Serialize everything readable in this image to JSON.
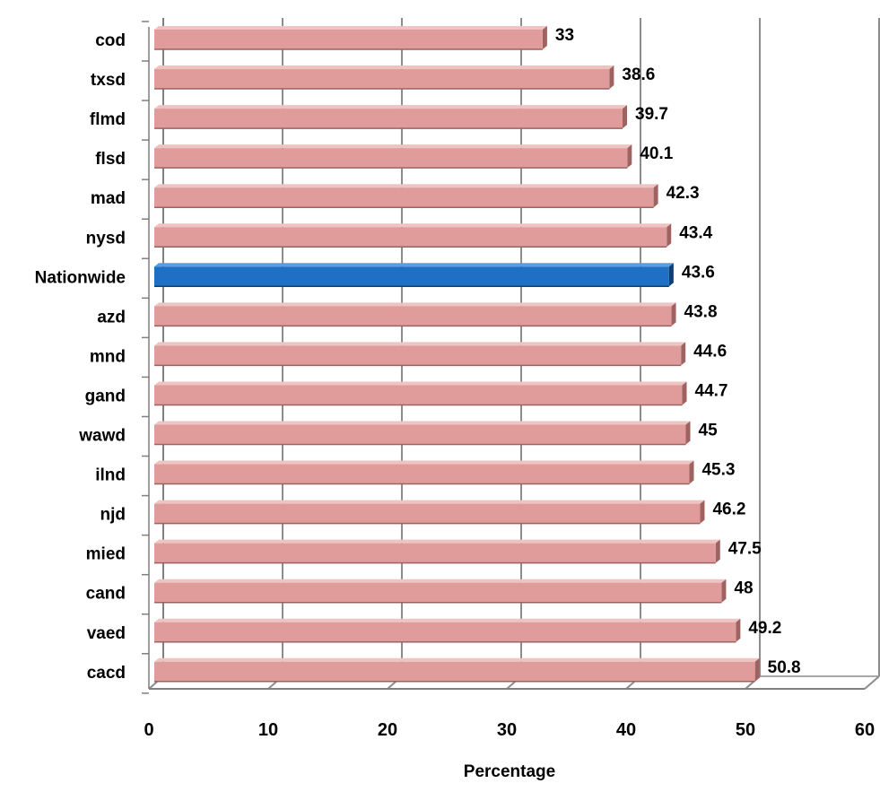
{
  "chart_data": {
    "type": "bar",
    "orientation": "horizontal",
    "three_d": true,
    "categories": [
      "cod",
      "txsd",
      "flmd",
      "flsd",
      "mad",
      "nysd",
      "Nationwide",
      "azd",
      "mnd",
      "gand",
      "wawd",
      "ilnd",
      "njd",
      "mied",
      "cand",
      "vaed",
      "cacd"
    ],
    "values": [
      33,
      38.6,
      39.7,
      40.1,
      42.3,
      43.4,
      43.6,
      43.8,
      44.6,
      44.7,
      45,
      45.3,
      46.2,
      47.5,
      48,
      49.2,
      50.8
    ],
    "value_labels": [
      "33",
      "38.6",
      "39.7",
      "40.1",
      "42.3",
      "43.4",
      "43.6",
      "43.8",
      "44.6",
      "44.7",
      "45",
      "45.3",
      "46.2",
      "47.5",
      "48",
      "49.2",
      "50.8"
    ],
    "highlight_category": "Nationwide",
    "xlabel": "Percentage",
    "ylabel": "",
    "title": "",
    "xlim": [
      0,
      60
    ],
    "x_ticks": [
      0,
      10,
      20,
      30,
      40,
      50,
      60
    ],
    "x_tick_labels": [
      "0",
      "10",
      "20",
      "30",
      "40",
      "50",
      "60"
    ],
    "grid": true,
    "legend": "none",
    "colors": {
      "bar_front": "#e09c9a",
      "bar_top": "#efc3c1",
      "bar_side": "#9e6260",
      "highlight_front": "#1f6fc4",
      "highlight_top": "#5b9be0",
      "highlight_side": "#0f3f75",
      "grid": "#8c8c8c",
      "axis": "#7f7f7f"
    }
  }
}
